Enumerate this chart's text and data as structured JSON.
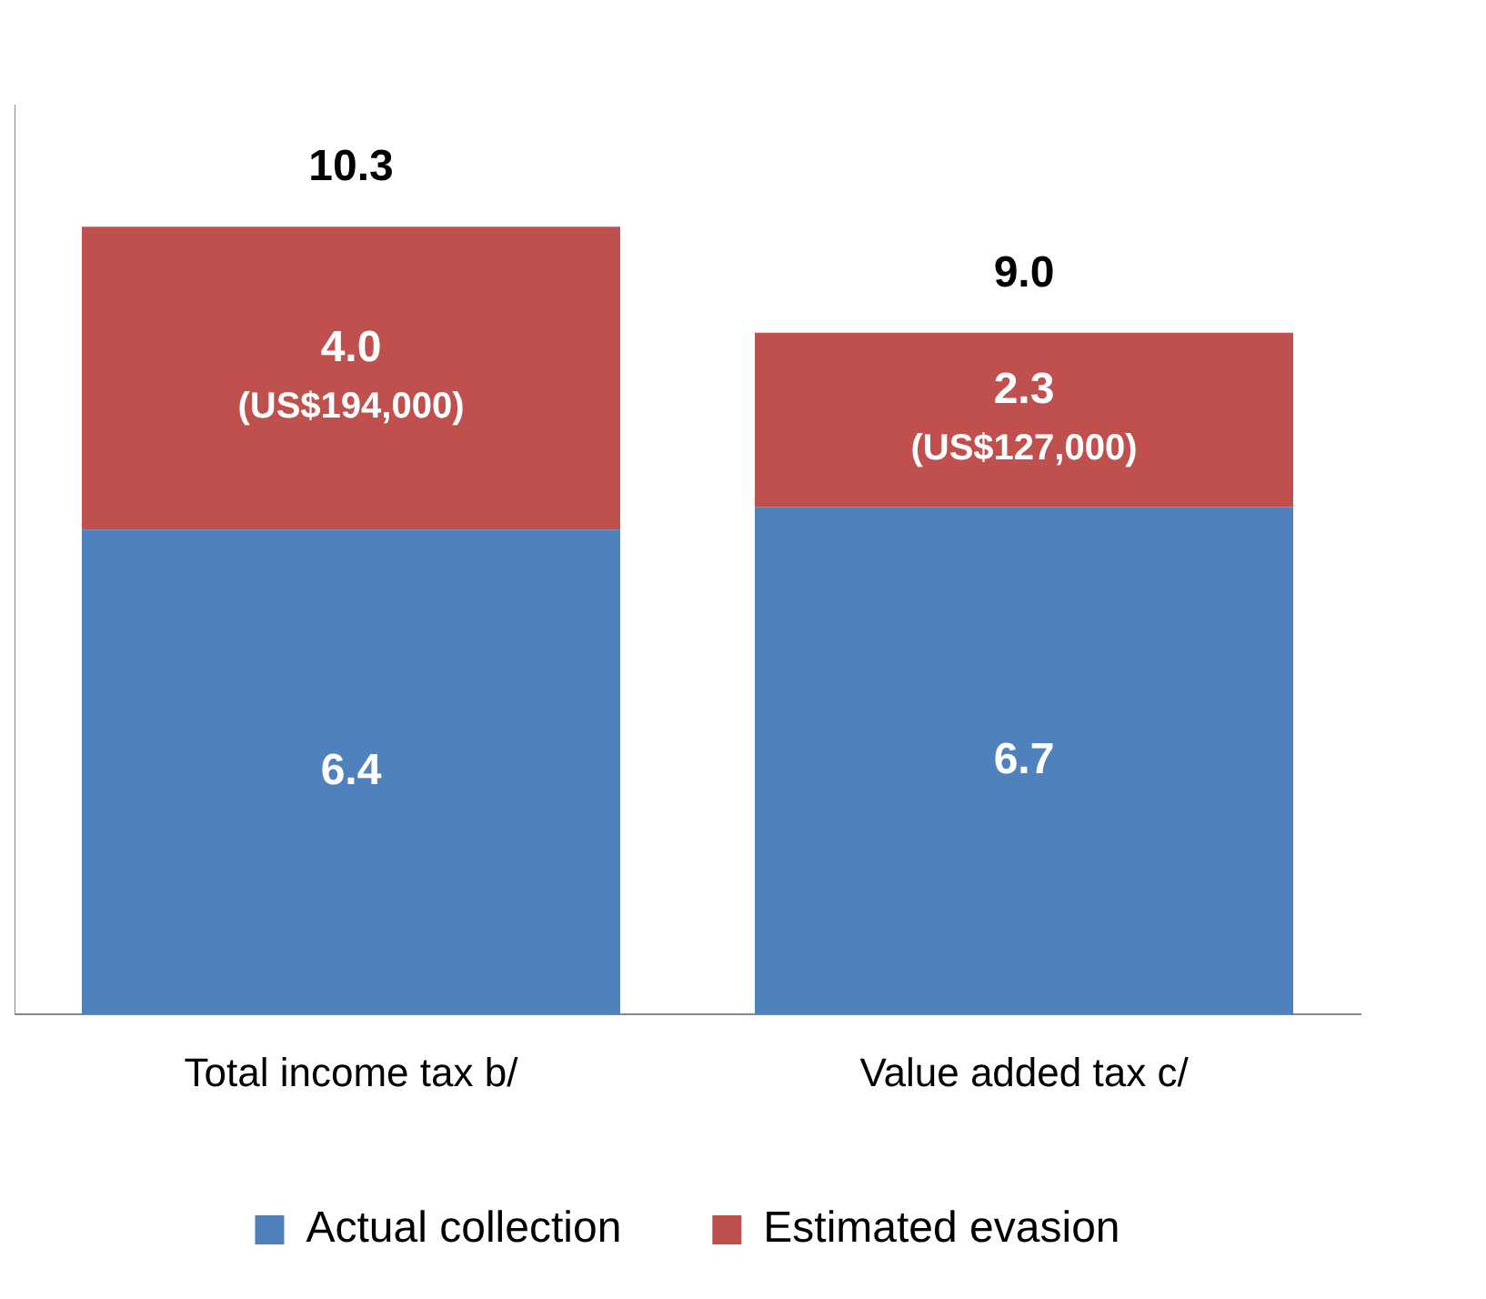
{
  "chart_data": {
    "type": "bar",
    "stacked": true,
    "categories": [
      "Total income tax b/",
      "Value added tax c/"
    ],
    "series": [
      {
        "name": "Actual collection",
        "color": "#4f81bd",
        "values": [
          6.4,
          6.7
        ],
        "value_labels": [
          "6.4",
          "6.7"
        ]
      },
      {
        "name": "Estimated evasion",
        "color": "#c0504d",
        "values": [
          4.0,
          2.3
        ],
        "value_labels": [
          "4.0\n(US$194,000)",
          "2.3\n(US$127,000)"
        ]
      }
    ],
    "totals": [
      "10.3",
      "9.0"
    ],
    "legend": "bottom",
    "tick_labels": "x"
  }
}
